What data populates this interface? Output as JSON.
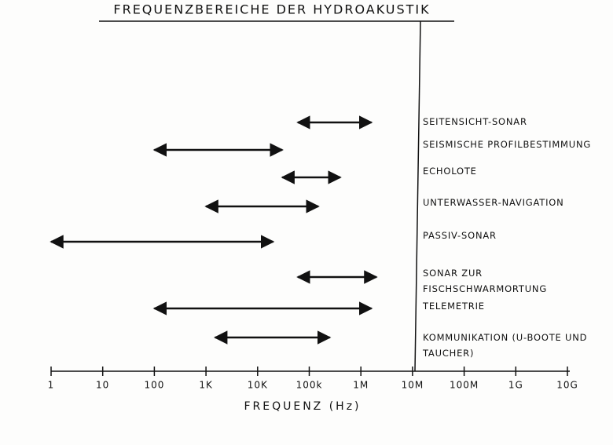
{
  "chart_data": {
    "type": "range",
    "title": "FREQUENZBEREICHE DER HYDROAKUSTIK",
    "xlabel": "FREQUENZ (Hz)",
    "categories": [
      "SEITENSICHT-SONAR",
      "SEISMISCHE PROFILBESTIMMUNG",
      "ECHOLOTE",
      "UNTERWASSER-NAVIGATION",
      "PASSIV-SONAR",
      "SONAR ZUR FISCHSCHWARMORTUNG",
      "TELEMETRIE",
      "KOMMUNIKATION (U-BOOTE UND TAUCHER)"
    ],
    "start": [
      60000,
      100,
      30000,
      1000,
      1,
      60000,
      100,
      1500
    ],
    "end": [
      1600000,
      30000,
      400000,
      150000,
      20000,
      2000000,
      1600000,
      250000
    ],
    "color": "#111111",
    "xscale": "log",
    "xlim": [
      1,
      10000000000
    ],
    "xticks": [
      1,
      10,
      100,
      {
        "value": 1000,
        "label": "1K"
      },
      {
        "value": 10000,
        "label": "10K"
      },
      {
        "value": 100000,
        "label": "100k"
      },
      {
        "value": 1000000,
        "label": "1M"
      },
      {
        "value": 10000000,
        "label": "10M"
      },
      {
        "value": 100000000,
        "label": "100M"
      },
      {
        "value": 1000000000,
        "label": "1G"
      },
      {
        "value": 10000000000,
        "label": "10G"
      }
    ]
  }
}
